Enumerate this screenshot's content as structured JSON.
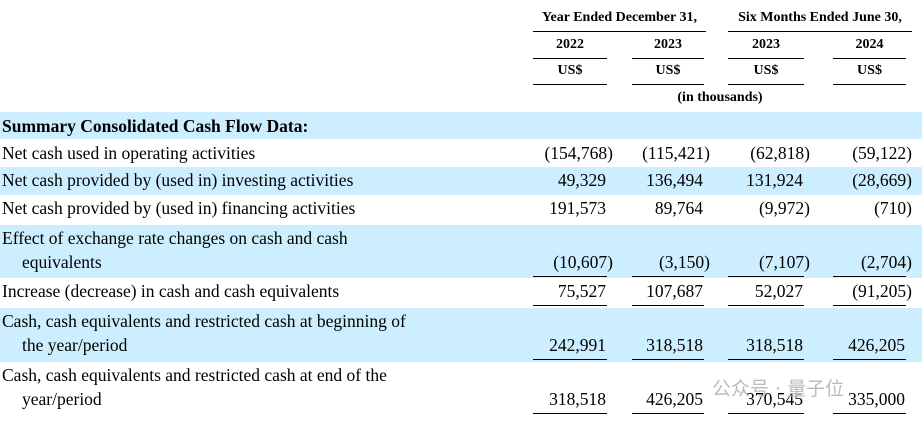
{
  "header": {
    "groups": [
      "Year Ended December 31,",
      "Six Months Ended June 30,"
    ],
    "years": [
      "2022",
      "2023",
      "2023",
      "2024"
    ],
    "currency": [
      "US$",
      "US$",
      "US$",
      "US$"
    ],
    "unit_note": "(in thousands)"
  },
  "table": {
    "section_title": "Summary Consolidated Cash Flow Data:",
    "rows": [
      {
        "label_lines": [
          "Net cash used in operating activities"
        ],
        "values": [
          "(154,768)",
          "(115,421)",
          "(62,818)",
          "(59,122)"
        ]
      },
      {
        "label_lines": [
          "Net cash provided by (used in) investing activities"
        ],
        "values": [
          "49,329",
          "136,494",
          "131,924",
          "(28,669)"
        ]
      },
      {
        "label_lines": [
          "Net cash provided by (used in) financing activities"
        ],
        "values": [
          "191,573",
          "89,764",
          "(9,972)",
          "(710)"
        ]
      },
      {
        "label_lines": [
          "Effect of exchange rate changes on cash and cash",
          "equivalents"
        ],
        "values": [
          "(10,607)",
          "(3,150)",
          "(7,107)",
          "(2,704)"
        ]
      },
      {
        "label_lines": [
          "Increase (decrease) in cash and cash equivalents"
        ],
        "values": [
          "75,527",
          "107,687",
          "52,027",
          "(91,205)"
        ]
      },
      {
        "label_lines": [
          "Cash, cash equivalents and restricted cash at beginning of",
          "the year/period"
        ],
        "values": [
          "242,991",
          "318,518",
          "318,518",
          "426,205"
        ]
      },
      {
        "label_lines": [
          "Cash, cash equivalents and restricted cash at end of the",
          "year/period"
        ],
        "values": [
          "318,518",
          "426,205",
          "370,545",
          "335,000"
        ]
      }
    ]
  },
  "watermark": {
    "text": "公众号 · 量子位"
  }
}
